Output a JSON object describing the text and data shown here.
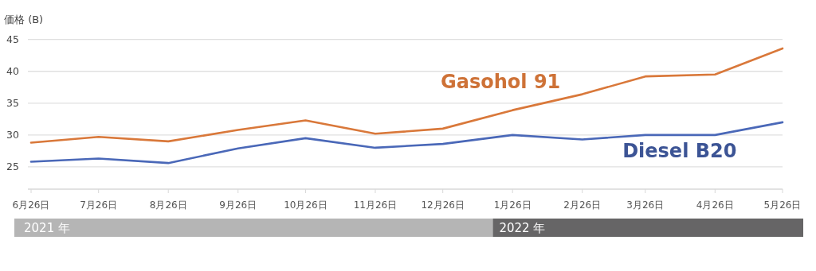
{
  "chart_data": {
    "type": "line",
    "ylabel": "価格 (B)",
    "x": [
      "2021-06-26",
      "2021-07-26",
      "2021-08-26",
      "2021-09-26",
      "2021-10-26",
      "2021-11-26",
      "2021-12-26",
      "2022-01-26",
      "2022-02-26",
      "2022-03-26",
      "2022-04-26",
      "2022-05-26"
    ],
    "series": [
      {
        "name": "Gasohol 91",
        "color": "#d9783a",
        "values": [
          28.8,
          29.7,
          29.0,
          30.8,
          32.3,
          30.2,
          31.0,
          33.9,
          36.4,
          39.2,
          39.5,
          43.6
        ]
      },
      {
        "name": "Diesel B20",
        "color": "#4a68b8",
        "values": [
          25.8,
          26.3,
          25.6,
          27.9,
          29.5,
          28.0,
          28.6,
          30.0,
          29.3,
          30.0,
          30.0,
          32.0
        ]
      }
    ],
    "xlim": [
      "2021-06-26",
      "2022-05-26"
    ],
    "xticks": [
      {
        "value": "2021-06-26",
        "label": "6月26日"
      },
      {
        "value": "2021-07-26",
        "label": "7月26日"
      },
      {
        "value": "2021-08-26",
        "label": "8月26日"
      },
      {
        "value": "2021-09-26",
        "label": "9月26日"
      },
      {
        "value": "2021-10-26",
        "label": "10月26日"
      },
      {
        "value": "2021-11-26",
        "label": "11月26日"
      },
      {
        "value": "2021-12-26",
        "label": "12月26日"
      },
      {
        "value": "2022-01-26",
        "label": "1月26日"
      },
      {
        "value": "2022-02-26",
        "label": "2月26日"
      },
      {
        "value": "2022-03-26",
        "label": "3月26日"
      },
      {
        "value": "2022-04-26",
        "label": "4月26日"
      },
      {
        "value": "2022-05-26",
        "label": "5月26日"
      }
    ],
    "ylim": [
      21.5,
      45
    ],
    "yticks": [
      25,
      30,
      35,
      40,
      45
    ],
    "grid": "y",
    "marker": "none",
    "line_style": "solid",
    "annotations": [
      "2021 年",
      "2022 年"
    ]
  }
}
